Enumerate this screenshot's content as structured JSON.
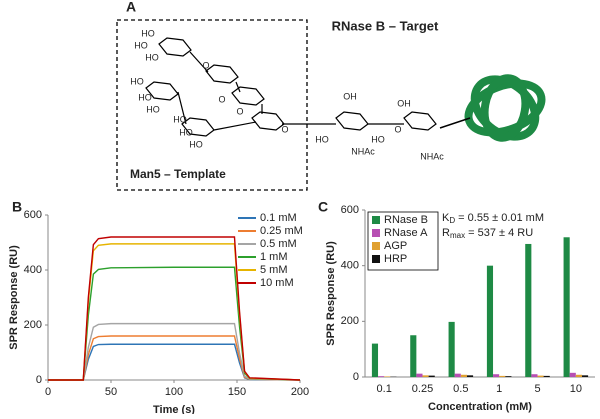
{
  "figure": {
    "panel_a": {
      "label": "A",
      "target_label": "RNase B – Target",
      "template_label": "Man5 – Template",
      "atom_labels": [
        "HO",
        "HO",
        "HO",
        "HO",
        "HO",
        "HO",
        "HO",
        "HO",
        "HO",
        "O",
        "O",
        "O",
        "O",
        "HO",
        "NHAc",
        "OH",
        "HO",
        "O",
        "OH",
        "NHAc"
      ]
    }
  },
  "chart_data": [
    {
      "type": "line",
      "panel_label": "B",
      "x_label": "Time (s)",
      "y_label": "SPR Response (RU)",
      "xlim": [
        0,
        200
      ],
      "xticks": [
        0,
        50,
        100,
        150,
        200
      ],
      "ylim": [
        0,
        600
      ],
      "yticks": [
        0,
        200,
        400,
        600
      ],
      "legend": "top-right",
      "x": [
        0,
        28,
        32,
        36,
        40,
        50,
        100,
        148,
        152,
        156,
        160,
        200
      ],
      "series": [
        {
          "name": "0.1 mM",
          "color": "#2e75b6",
          "values": [
            0,
            0,
            75,
            122,
            129,
            130,
            130,
            130,
            62,
            8,
            2,
            0
          ]
        },
        {
          "name": "0.25 mM",
          "color": "#ed7d31",
          "values": [
            0,
            0,
            92,
            150,
            158,
            160,
            160,
            160,
            78,
            10,
            3,
            0
          ]
        },
        {
          "name": "0.5 mM",
          "color": "#a5a5a5",
          "values": [
            0,
            0,
            118,
            192,
            202,
            205,
            205,
            205,
            98,
            14,
            4,
            0
          ]
        },
        {
          "name": "1 mM",
          "color": "#2ca02c",
          "values": [
            0,
            0,
            235,
            385,
            402,
            408,
            410,
            410,
            195,
            25,
            6,
            0
          ]
        },
        {
          "name": "5 mM",
          "color": "#e6b400",
          "values": [
            0,
            0,
            285,
            470,
            490,
            495,
            495,
            495,
            238,
            30,
            7,
            0
          ]
        },
        {
          "name": "10 mM",
          "color": "#c00000",
          "values": [
            0,
            0,
            300,
            492,
            514,
            520,
            520,
            520,
            250,
            32,
            8,
            0
          ]
        }
      ]
    },
    {
      "type": "bar",
      "panel_label": "C",
      "x_label": "Concentration (mM)",
      "y_label": "SPR Response (RU)",
      "categories": [
        "0.1",
        "0.25",
        "0.5",
        "1",
        "5",
        "10"
      ],
      "ylim": [
        0,
        600
      ],
      "yticks": [
        0,
        200,
        400,
        600
      ],
      "legend": "top-left",
      "annotations": [
        {
          "main": "K",
          "sub": "D",
          "rest": " = 0.55 ± 0.01 mM"
        },
        {
          "main": "R",
          "sub": "max",
          "rest": " = 537 ± 4 RU"
        }
      ],
      "series": [
        {
          "name": "RNase B",
          "color": "#1e8a45",
          "values": [
            120,
            150,
            198,
            400,
            478,
            502
          ]
        },
        {
          "name": "RNase A",
          "color": "#b74fb3",
          "values": [
            3,
            12,
            12,
            10,
            10,
            15
          ]
        },
        {
          "name": "AGP",
          "color": "#e0a030",
          "values": [
            2,
            6,
            8,
            4,
            5,
            8
          ]
        },
        {
          "name": "HRP",
          "color": "#111111",
          "values": [
            1,
            5,
            6,
            3,
            4,
            6
          ]
        }
      ]
    }
  ]
}
